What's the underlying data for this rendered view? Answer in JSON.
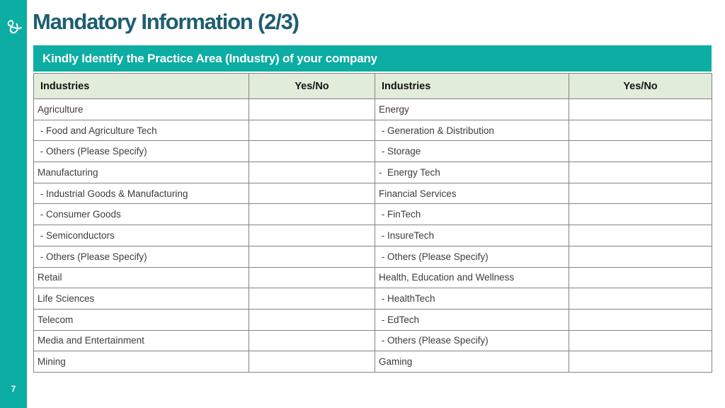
{
  "sidebar": {
    "logo_glyph": "&",
    "page_number": "7"
  },
  "header": {
    "title": "Mandatory Information (2/3)"
  },
  "banner": {
    "text": "Kindly Identify the Practice Area (Industry) of your company"
  },
  "colors": {
    "accent_teal": "#0cada2",
    "title_text": "#1d5e72",
    "header_row_bg": "#e2ecda",
    "table_border": "#848484"
  },
  "table": {
    "columns": [
      "Industries",
      "Yes/No",
      "Industries",
      "Yes/No"
    ],
    "rows": [
      {
        "c1": "Agriculture",
        "c2": "",
        "c3": "Energy",
        "c4": ""
      },
      {
        "c1": " - Food and Agriculture Tech",
        "c2": "",
        "c3": " - Generation & Distribution",
        "c4": ""
      },
      {
        "c1": " - Others (Please Specify)",
        "c2": "",
        "c3": " - Storage",
        "c4": ""
      },
      {
        "c1": "Manufacturing",
        "c2": "",
        "c3": "-  Energy Tech",
        "c4": ""
      },
      {
        "c1": " - Industrial Goods & Manufacturing",
        "c2": "",
        "c3": "Financial Services",
        "c4": ""
      },
      {
        "c1": " - Consumer Goods",
        "c2": "",
        "c3": " - FinTech",
        "c4": ""
      },
      {
        "c1": " - Semiconductors",
        "c2": "",
        "c3": " - InsureTech",
        "c4": ""
      },
      {
        "c1": " - Others (Please Specify)",
        "c2": "",
        "c3": " - Others (Please Specify)",
        "c4": ""
      },
      {
        "c1": "Retail",
        "c2": "",
        "c3": "Health, Education and Wellness",
        "c4": ""
      },
      {
        "c1": "Life Sciences",
        "c2": "",
        "c3": " - HealthTech",
        "c4": ""
      },
      {
        "c1": "Telecom",
        "c2": "",
        "c3": " - EdTech",
        "c4": ""
      },
      {
        "c1": "Media and Entertainment",
        "c2": "",
        "c3": " - Others (Please Specify)",
        "c4": ""
      },
      {
        "c1": "Mining",
        "c2": "",
        "c3": "Gaming",
        "c4": ""
      }
    ]
  }
}
